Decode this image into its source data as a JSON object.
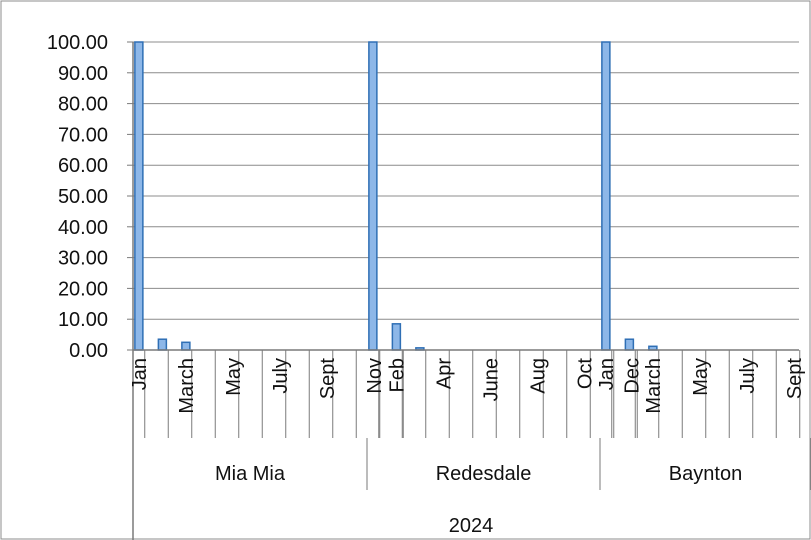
{
  "chart_data": {
    "type": "bar",
    "title": "",
    "xlabel": "",
    "ylabel": "",
    "ylim": [
      0,
      100
    ],
    "yticks": [
      "0.00",
      "10.00",
      "20.00",
      "30.00",
      "40.00",
      "50.00",
      "60.00",
      "70.00",
      "80.00",
      "90.00",
      "100.00"
    ],
    "grid": true,
    "year_label": "2024",
    "groups": [
      {
        "name": "Mia Mia",
        "categories": [
          "Jan",
          "Feb",
          "March",
          "Apr",
          "May",
          "June",
          "July",
          "Aug",
          "Sept",
          "Oct",
          "Nov",
          "Dec"
        ],
        "shown_labels": [
          "Jan",
          "March",
          "May",
          "July",
          "Sept",
          "Nov"
        ],
        "values": [
          100,
          3.5,
          2.5,
          0,
          0,
          0,
          0,
          0,
          0,
          0,
          0,
          0
        ]
      },
      {
        "name": "Redesdale",
        "categories": [
          "Jan",
          "Feb",
          "March",
          "Apr",
          "May",
          "June",
          "July",
          "Aug",
          "Sept",
          "Oct",
          "Nov",
          "Dec"
        ],
        "shown_labels": [
          "Feb",
          "Apr",
          "June",
          "Aug",
          "Oct",
          "Dec"
        ],
        "values": [
          100,
          8.5,
          0.7,
          0,
          0,
          0,
          0,
          0,
          0,
          0,
          0,
          0
        ]
      },
      {
        "name": "Baynton",
        "categories": [
          "Jan",
          "Feb",
          "March",
          "Apr",
          "May",
          "June",
          "July",
          "Aug",
          "Sept",
          "Oct",
          "Nov",
          "Dec"
        ],
        "shown_labels": [
          "Jan",
          "March",
          "May",
          "July",
          "Sept",
          "Nov"
        ],
        "values": [
          100,
          3.5,
          1.2,
          0,
          0,
          0,
          0,
          0,
          0,
          0,
          0,
          0
        ]
      }
    ],
    "colors": {
      "bar_fill": "#8db7e8",
      "bar_stroke": "#2f6fb5",
      "grid": "#8c8c8c",
      "axis": "#7a7a7a"
    }
  }
}
